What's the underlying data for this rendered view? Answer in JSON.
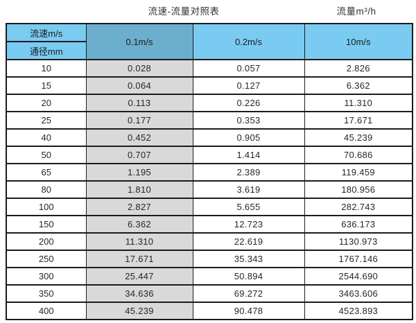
{
  "page": {
    "title_left": "流速-流量对照表",
    "title_right": "流量m³/h"
  },
  "table": {
    "corner_top": "流速m/s",
    "corner_bottom": "通径mm",
    "velocity_columns": [
      "0.1m/s",
      "0.2m/s",
      "10m/s"
    ],
    "rows": [
      {
        "diameter": "10",
        "values": [
          "0.028",
          "0.057",
          "2.826"
        ]
      },
      {
        "diameter": "15",
        "values": [
          "0.064",
          "0.127",
          "6.362"
        ]
      },
      {
        "diameter": "20",
        "values": [
          "0.113",
          "0.226",
          "11.310"
        ]
      },
      {
        "diameter": "25",
        "values": [
          "0.177",
          "0.353",
          "17.671"
        ]
      },
      {
        "diameter": "40",
        "values": [
          "0.452",
          "0.905",
          "45.239"
        ]
      },
      {
        "diameter": "50",
        "values": [
          "0.707",
          "1.414",
          "70.686"
        ]
      },
      {
        "diameter": "65",
        "values": [
          "1.195",
          "2.389",
          "119.459"
        ]
      },
      {
        "diameter": "80",
        "values": [
          "1.810",
          "3.619",
          "180.956"
        ]
      },
      {
        "diameter": "100",
        "values": [
          "2.827",
          "5.655",
          "282.743"
        ]
      },
      {
        "diameter": "150",
        "values": [
          "6.362",
          "12.723",
          "636.173"
        ]
      },
      {
        "diameter": "200",
        "values": [
          "11.310",
          "22.619",
          "1130.973"
        ]
      },
      {
        "diameter": "250",
        "values": [
          "17.671",
          "35.343",
          "1767.146"
        ]
      },
      {
        "diameter": "300",
        "values": [
          "25.447",
          "50.894",
          "2544.690"
        ]
      },
      {
        "diameter": "350",
        "values": [
          "34.636",
          "69.272",
          "3463.606"
        ]
      },
      {
        "diameter": "400",
        "values": [
          "45.239",
          "90.478",
          "4523.893"
        ]
      }
    ]
  },
  "colors": {
    "header_blue": "#79CBF1",
    "highlight_blue": "#6CAECD",
    "gray_column": "#D9D9D9",
    "border": "#1b1b1b"
  },
  "chart_data": {
    "type": "table",
    "title": "流速-流量对照表",
    "unit_label": "流量m³/h",
    "columns": [
      "通径mm",
      "0.1m/s",
      "0.2m/s",
      "10m/s"
    ],
    "rows": [
      [
        10,
        0.028,
        0.057,
        2.826
      ],
      [
        15,
        0.064,
        0.127,
        6.362
      ],
      [
        20,
        0.113,
        0.226,
        11.31
      ],
      [
        25,
        0.177,
        0.353,
        17.671
      ],
      [
        40,
        0.452,
        0.905,
        45.239
      ],
      [
        50,
        0.707,
        1.414,
        70.686
      ],
      [
        65,
        1.195,
        2.389,
        119.459
      ],
      [
        80,
        1.81,
        3.619,
        180.956
      ],
      [
        100,
        2.827,
        5.655,
        282.743
      ],
      [
        150,
        6.362,
        12.723,
        636.173
      ],
      [
        200,
        11.31,
        22.619,
        1130.973
      ],
      [
        250,
        17.671,
        35.343,
        1767.146
      ],
      [
        300,
        25.447,
        50.894,
        2544.69
      ],
      [
        350,
        34.636,
        69.272,
        3463.606
      ],
      [
        400,
        45.239,
        90.478,
        4523.893
      ]
    ]
  }
}
